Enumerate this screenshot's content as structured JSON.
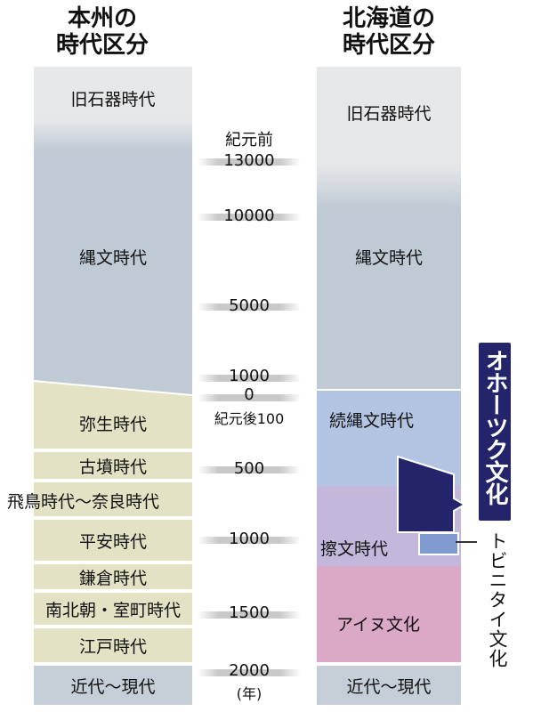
{
  "titles": {
    "honshu": "本州の\n時代区分",
    "hokkaido": "北海道の\n時代区分"
  },
  "honshu_periods": [
    "旧石器時代",
    "縄文時代",
    "弥生時代",
    "古墳時代",
    "飛鳥時代～奈良時代",
    "平安時代",
    "鎌倉時代",
    "南北朝・室町時代",
    "江戸時代",
    "近代～現代"
  ],
  "hokkaido_periods": [
    "旧石器時代",
    "縄文時代",
    "続縄文時代",
    "擦文時代",
    "アイヌ文化",
    "近代～現代"
  ],
  "okhotsk": "オホーツク文化",
  "tobinitai": "トビニタイ文化",
  "scale": {
    "bc_label": "紀元前",
    "ad_label": "紀元後100",
    "ticks": [
      "13000",
      "10000",
      "5000",
      "1000",
      "0",
      "500",
      "1000",
      "1500",
      "2000"
    ],
    "unit": "(年)"
  },
  "colors": {
    "paleolithic": "#e6e7e9",
    "jomon": "#bfcad4",
    "yayoi_to_edo": "#e3e2c4",
    "modern": "#c5ced6",
    "zoku_jomon": "#b2c4e2",
    "satsumon": "#c3b8dc",
    "ainu": "#dba8c6",
    "okhotsk": "#24246b",
    "tobinitai": "#7f9bd0"
  }
}
